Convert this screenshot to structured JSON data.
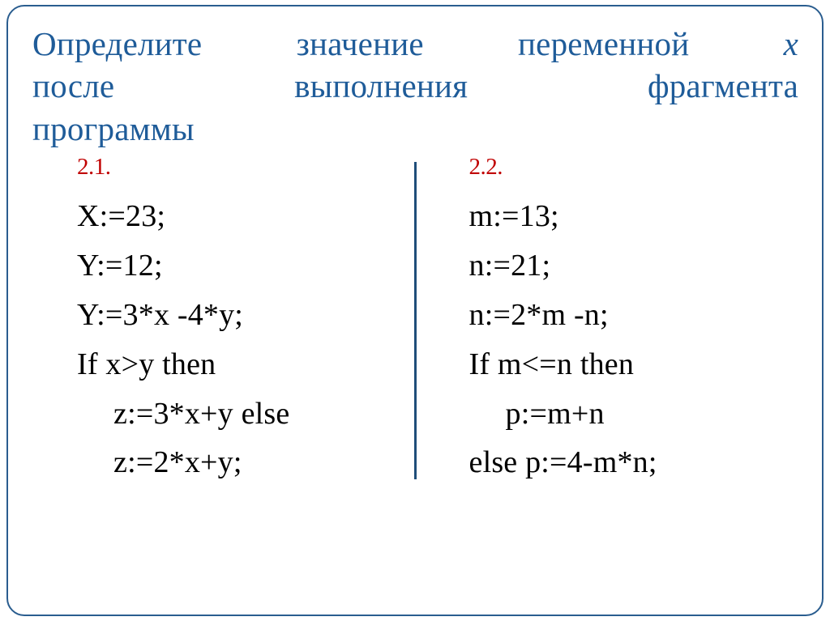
{
  "title": {
    "line1_part1": "Определите",
    "line1_part2": "значение",
    "line1_part3": "переменной",
    "line1_part4": "х",
    "line2_part1": "после",
    "line2_part2": "выполнения",
    "line2_part3": "фрагмента",
    "line3": "программы"
  },
  "colors": {
    "title": "#1f5c99",
    "task_num": "#c00000",
    "code": "#000000",
    "border": "#2a5d8f",
    "divider": "#1f4e7a",
    "background": "#ffffff"
  },
  "task1": {
    "num": "2.1.",
    "lines": [
      "X:=23;",
      "Y:=12;",
      "Y:=3*x -4*y;",
      "If  x>y then"
    ],
    "indent_lines": [
      "z:=3*x+y else",
      "z:=2*x+y;"
    ]
  },
  "task2": {
    "num": "2.2.",
    "lines": [
      "m:=13;",
      "n:=21;",
      "n:=2*m -n;",
      "If  m<=n then"
    ],
    "indent_lines": [
      "p:=m+n"
    ],
    "last_line": "else p:=4-m*n;"
  },
  "fonts": {
    "title_size": 41,
    "tasknum_size": 29,
    "code_size": 38
  }
}
